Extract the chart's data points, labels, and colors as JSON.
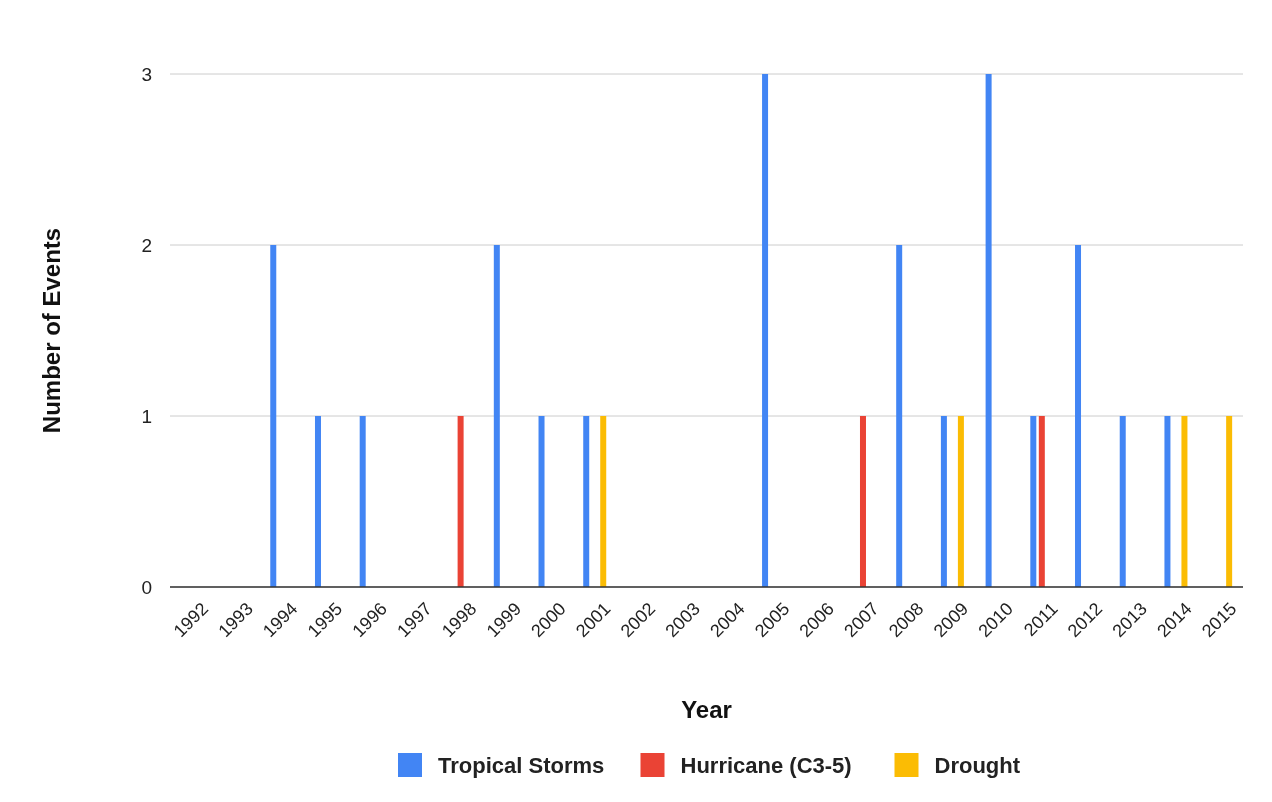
{
  "chart_data": {
    "type": "bar",
    "xlabel": "Year",
    "ylabel": "Number of Events",
    "categories": [
      "1992",
      "1993",
      "1994",
      "1995",
      "1996",
      "1997",
      "1998",
      "1999",
      "2000",
      "2001",
      "2002",
      "2003",
      "2004",
      "2005",
      "2006",
      "2007",
      "2008",
      "2009",
      "2010",
      "2011",
      "2012",
      "2013",
      "2014",
      "2015"
    ],
    "series": [
      {
        "name": "Tropical Storms",
        "color": "#4285f4",
        "values": [
          0,
          0,
          2,
          1,
          1,
          0,
          0,
          2,
          1,
          1,
          0,
          0,
          0,
          3,
          0,
          0,
          2,
          1,
          3,
          1,
          2,
          1,
          1,
          0
        ]
      },
      {
        "name": "Hurricane (C3-5)",
        "color": "#ea4335",
        "values": [
          0,
          0,
          0,
          0,
          0,
          0,
          1,
          0,
          0,
          0,
          0,
          0,
          0,
          0,
          0,
          1,
          0,
          0,
          0,
          1,
          0,
          0,
          0,
          0
        ]
      },
      {
        "name": "Drought",
        "color": "#fbbc04",
        "values": [
          0,
          0,
          0,
          0,
          0,
          0,
          0,
          0,
          0,
          1,
          0,
          0,
          0,
          0,
          0,
          0,
          0,
          1,
          0,
          0,
          0,
          0,
          1,
          1
        ]
      }
    ],
    "ylim": [
      0,
      3
    ],
    "yticks": [
      0,
      1,
      2,
      3
    ],
    "grid": "y",
    "legend": "bottom"
  }
}
